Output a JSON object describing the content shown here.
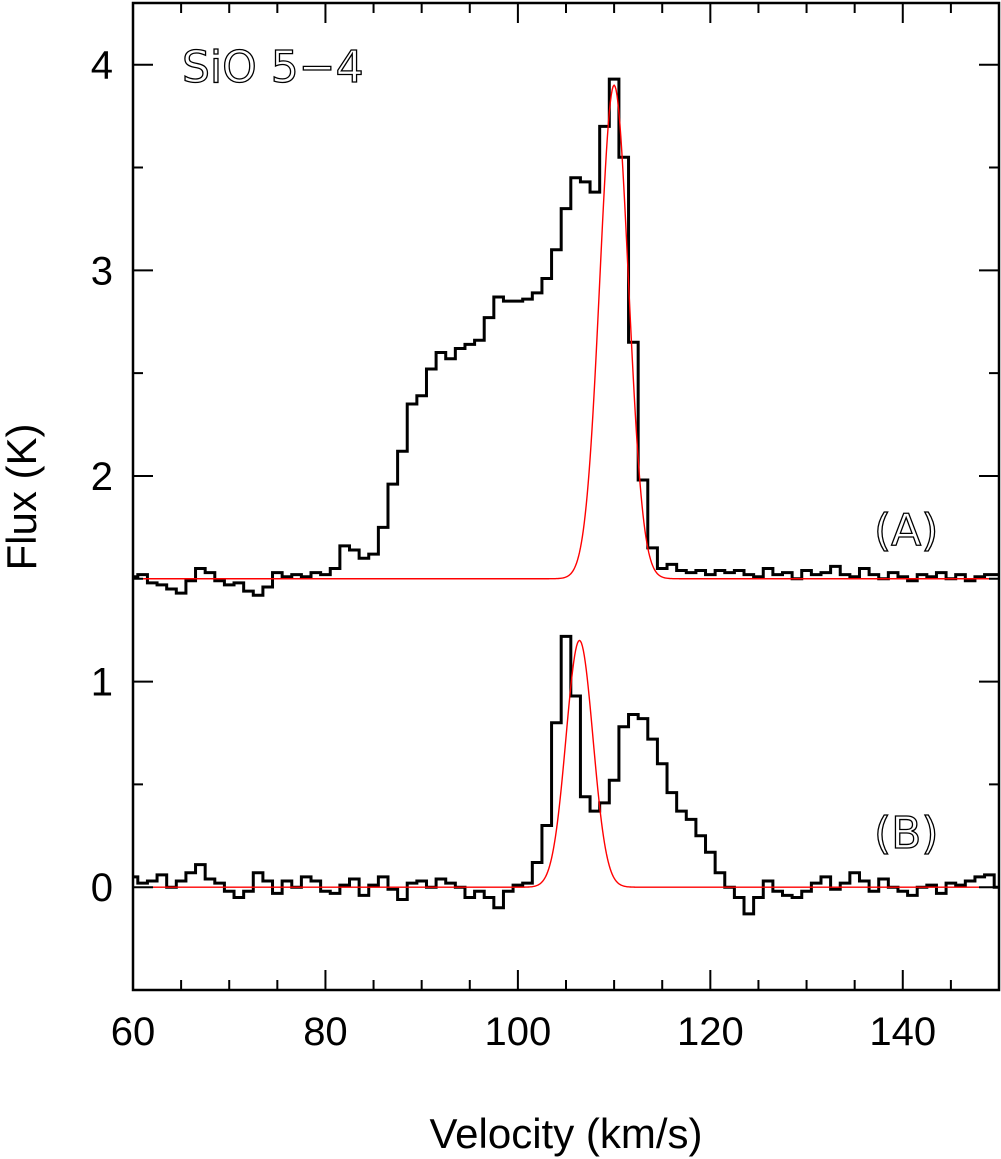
{
  "chart_data": {
    "type": "line",
    "title": "SiO 5−4",
    "xlabel": "Velocity (km/s)",
    "ylabel": "Flux (K)",
    "xlim": [
      60,
      150
    ],
    "ylim": [
      -0.5,
      4.3
    ],
    "xticks": [
      "60",
      "80",
      "100",
      "120",
      "140"
    ],
    "xtick_values": [
      60,
      80,
      100,
      120,
      140
    ],
    "yticks": [
      "0",
      "1",
      "2",
      "3",
      "4"
    ],
    "ytick_values": [
      0,
      1,
      2,
      3,
      4
    ],
    "grid": false,
    "annotations": [
      "(A)",
      "(B)"
    ],
    "colors": {
      "data": "#000000",
      "fit": "#ff0000"
    },
    "series": [
      {
        "style": "histogram",
        "color": "#000000",
        "x": [
          60,
          61,
          62,
          63,
          64,
          65,
          66,
          67,
          68,
          69,
          70,
          71,
          72,
          73,
          74,
          75,
          76,
          77,
          78,
          79,
          80,
          81,
          82,
          83,
          84,
          85,
          86,
          87,
          88,
          89,
          90,
          91,
          92,
          93,
          94,
          95,
          96,
          97,
          98,
          99,
          100,
          101,
          102,
          103,
          104,
          105,
          106,
          107,
          108,
          109,
          110,
          111,
          112,
          113,
          114,
          115,
          116,
          117,
          118,
          119,
          120,
          121,
          122,
          123,
          124,
          125,
          126,
          127,
          128,
          129,
          130,
          131,
          132,
          133,
          134,
          135,
          136,
          137,
          138,
          139,
          140,
          141,
          142,
          143,
          144,
          145,
          146,
          147,
          148,
          149,
          150
        ],
        "y": [
          1.51,
          1.52,
          1.48,
          1.47,
          1.45,
          1.43,
          1.49,
          1.55,
          1.53,
          1.49,
          1.47,
          1.48,
          1.44,
          1.42,
          1.46,
          1.53,
          1.51,
          1.52,
          1.51,
          1.53,
          1.52,
          1.55,
          1.66,
          1.64,
          1.6,
          1.62,
          1.75,
          1.96,
          2.12,
          2.35,
          2.39,
          2.52,
          2.6,
          2.57,
          2.62,
          2.64,
          2.66,
          2.77,
          2.87,
          2.85,
          2.85,
          2.86,
          2.89,
          2.96,
          3.1,
          3.3,
          3.45,
          3.43,
          3.38,
          3.7,
          3.93,
          3.55,
          2.65,
          1.98,
          1.65,
          1.55,
          1.57,
          1.54,
          1.53,
          1.54,
          1.52,
          1.54,
          1.53,
          1.54,
          1.52,
          1.51,
          1.55,
          1.52,
          1.53,
          1.5,
          1.54,
          1.52,
          1.53,
          1.56,
          1.52,
          1.51,
          1.55,
          1.52,
          1.5,
          1.53,
          1.51,
          1.49,
          1.52,
          1.51,
          1.53,
          1.5,
          1.52,
          1.49,
          1.51,
          1.52,
          1.52
        ]
      },
      {
        "style": "smooth",
        "color": "#ff0000",
        "baseline": 1.5,
        "components": [
          {
            "amplitude": 2.4,
            "center": 110.0,
            "fwhm": 3.5
          }
        ]
      },
      {
        "style": "histogram",
        "color": "#000000",
        "x": [
          60,
          61,
          62,
          63,
          64,
          65,
          66,
          67,
          68,
          69,
          70,
          71,
          72,
          73,
          74,
          75,
          76,
          77,
          78,
          79,
          80,
          81,
          82,
          83,
          84,
          85,
          86,
          87,
          88,
          89,
          90,
          91,
          92,
          93,
          94,
          95,
          96,
          97,
          98,
          99,
          100,
          101,
          102,
          103,
          104,
          105,
          106,
          107,
          108,
          109,
          110,
          111,
          112,
          113,
          114,
          115,
          116,
          117,
          118,
          119,
          120,
          121,
          122,
          123,
          124,
          125,
          126,
          127,
          128,
          129,
          130,
          131,
          132,
          133,
          134,
          135,
          136,
          137,
          138,
          139,
          140,
          141,
          142,
          143,
          144,
          145,
          146,
          147,
          148,
          149,
          150
        ],
        "y": [
          0.05,
          0.02,
          0.03,
          0.06,
          0.0,
          0.03,
          0.07,
          0.11,
          0.04,
          0.02,
          -0.02,
          -0.05,
          -0.02,
          0.07,
          0.03,
          -0.03,
          0.03,
          0.0,
          0.05,
          0.03,
          -0.02,
          -0.03,
          0.01,
          0.04,
          -0.04,
          0.01,
          0.05,
          -0.01,
          -0.06,
          0.02,
          0.03,
          0.0,
          0.04,
          0.02,
          0.0,
          -0.05,
          -0.02,
          -0.05,
          -0.1,
          -0.02,
          0.01,
          0.02,
          0.12,
          0.3,
          0.8,
          1.22,
          0.93,
          0.44,
          0.37,
          0.41,
          0.52,
          0.78,
          0.84,
          0.82,
          0.72,
          0.6,
          0.46,
          0.37,
          0.33,
          0.25,
          0.17,
          0.07,
          0.0,
          -0.05,
          -0.13,
          -0.05,
          0.03,
          -0.02,
          -0.04,
          -0.05,
          -0.02,
          0.02,
          0.05,
          -0.01,
          0.02,
          0.07,
          0.03,
          -0.02,
          0.04,
          0.0,
          -0.02,
          -0.04,
          0.0,
          0.01,
          -0.03,
          0.02,
          0.01,
          0.03,
          0.05,
          0.06,
          0.0
        ]
      },
      {
        "style": "smooth",
        "color": "#ff0000",
        "baseline": 0.0,
        "components": [
          {
            "amplitude": 1.2,
            "center": 106.4,
            "fwhm": 3.3
          }
        ]
      }
    ]
  }
}
